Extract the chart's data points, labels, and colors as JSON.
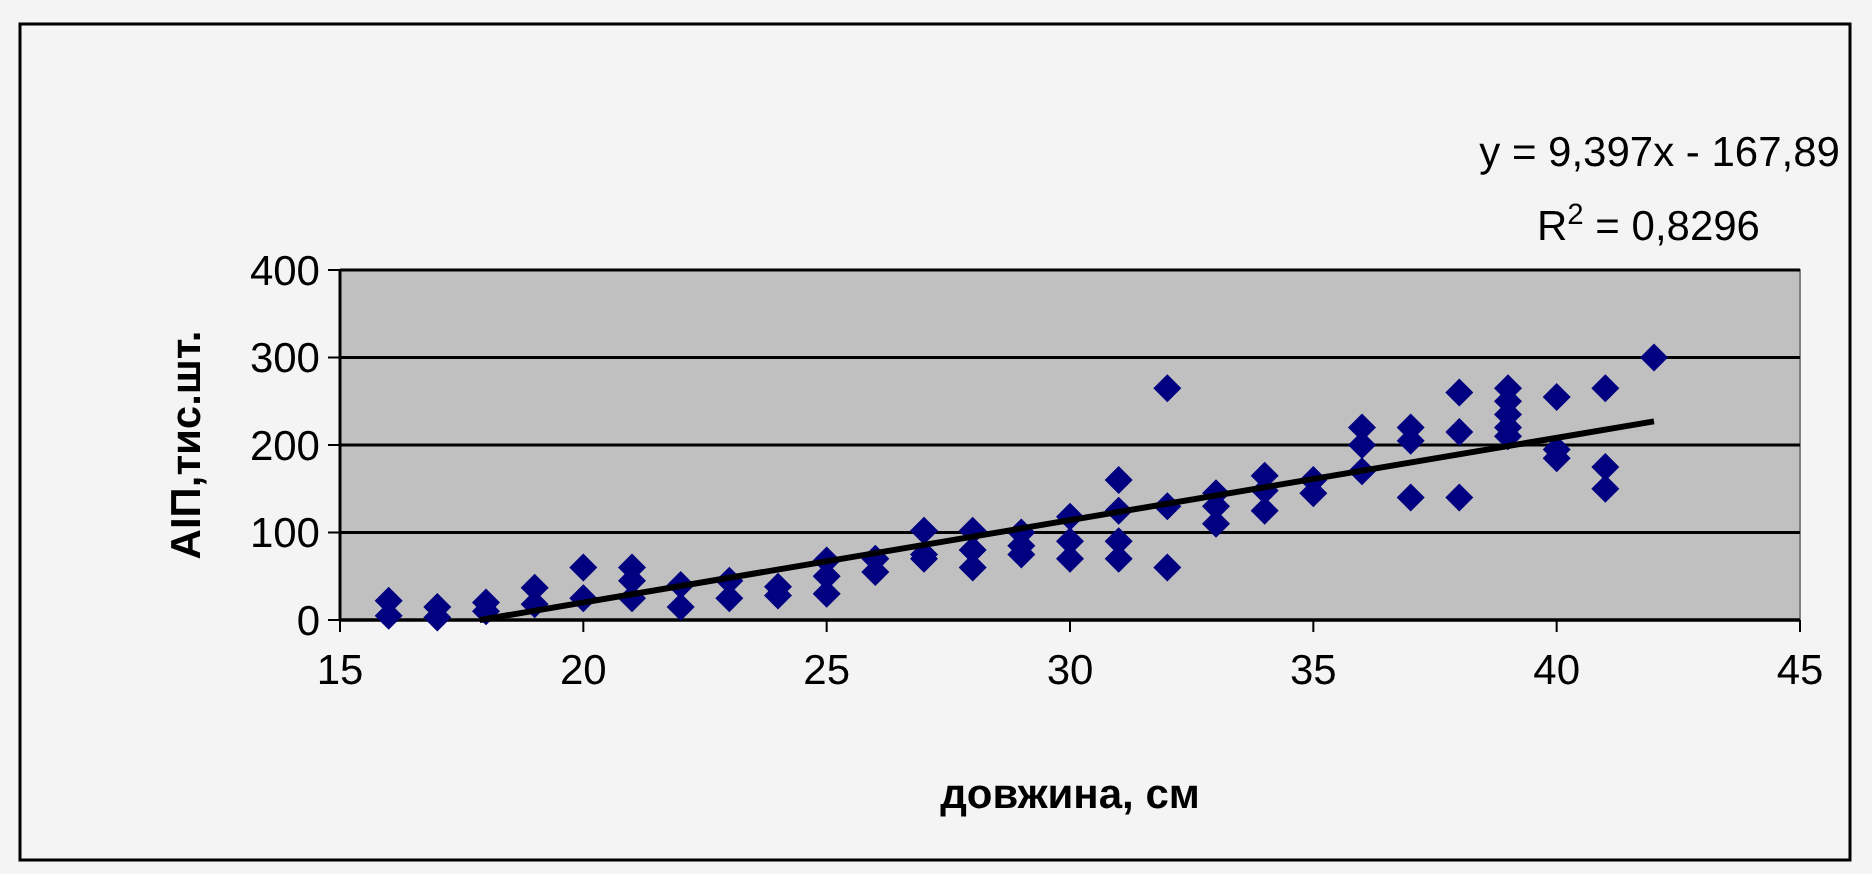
{
  "chart_data": {
    "type": "scatter",
    "xlabel": "довжина, см",
    "ylabel": "АІП,тис.шт.",
    "xlim": [
      15,
      45
    ],
    "xticks": [
      15,
      20,
      25,
      30,
      35,
      40,
      45
    ],
    "ylim": [
      0,
      400
    ],
    "yticks": [
      0,
      100,
      200,
      300,
      400
    ],
    "grid": "y",
    "marker": "diamond",
    "annotations": [
      "y = 9,397x - 167,89",
      "R$^{2}$ = 0,8296"
    ],
    "series": [
      {
        "color": "#000080",
        "x": [
          16,
          16,
          17,
          17,
          18,
          18,
          19,
          19,
          20,
          20,
          21,
          21,
          21,
          22,
          22,
          23,
          23,
          24,
          24,
          25,
          25,
          25,
          26,
          26,
          27,
          27,
          27,
          28,
          28,
          28,
          29,
          29,
          29,
          30,
          30,
          30,
          31,
          31,
          31,
          31,
          32,
          32,
          32,
          33,
          33,
          33,
          34,
          34,
          34,
          35,
          35,
          36,
          36,
          36,
          37,
          37,
          37,
          38,
          38,
          38,
          39,
          39,
          39,
          39,
          39,
          40,
          40,
          40,
          41,
          41,
          41,
          42
        ],
        "values": [
          22,
          5,
          15,
          3,
          20,
          10,
          37,
          18,
          60,
          25,
          60,
          45,
          25,
          40,
          15,
          45,
          25,
          38,
          28,
          68,
          50,
          30,
          70,
          55,
          102,
          75,
          70,
          102,
          80,
          60,
          100,
          85,
          75,
          118,
          90,
          70,
          160,
          125,
          90,
          70,
          265,
          130,
          60,
          145,
          130,
          110,
          165,
          148,
          125,
          160,
          145,
          220,
          200,
          170,
          220,
          205,
          140,
          260,
          215,
          140,
          265,
          250,
          235,
          220,
          210,
          255,
          195,
          185,
          265,
          175,
          150,
          300
        ]
      },
      {
        "type": "line",
        "color": "#000000",
        "marker": "none",
        "x": [
          17.87,
          42
        ],
        "values": [
          0,
          227
        ]
      }
    ]
  }
}
